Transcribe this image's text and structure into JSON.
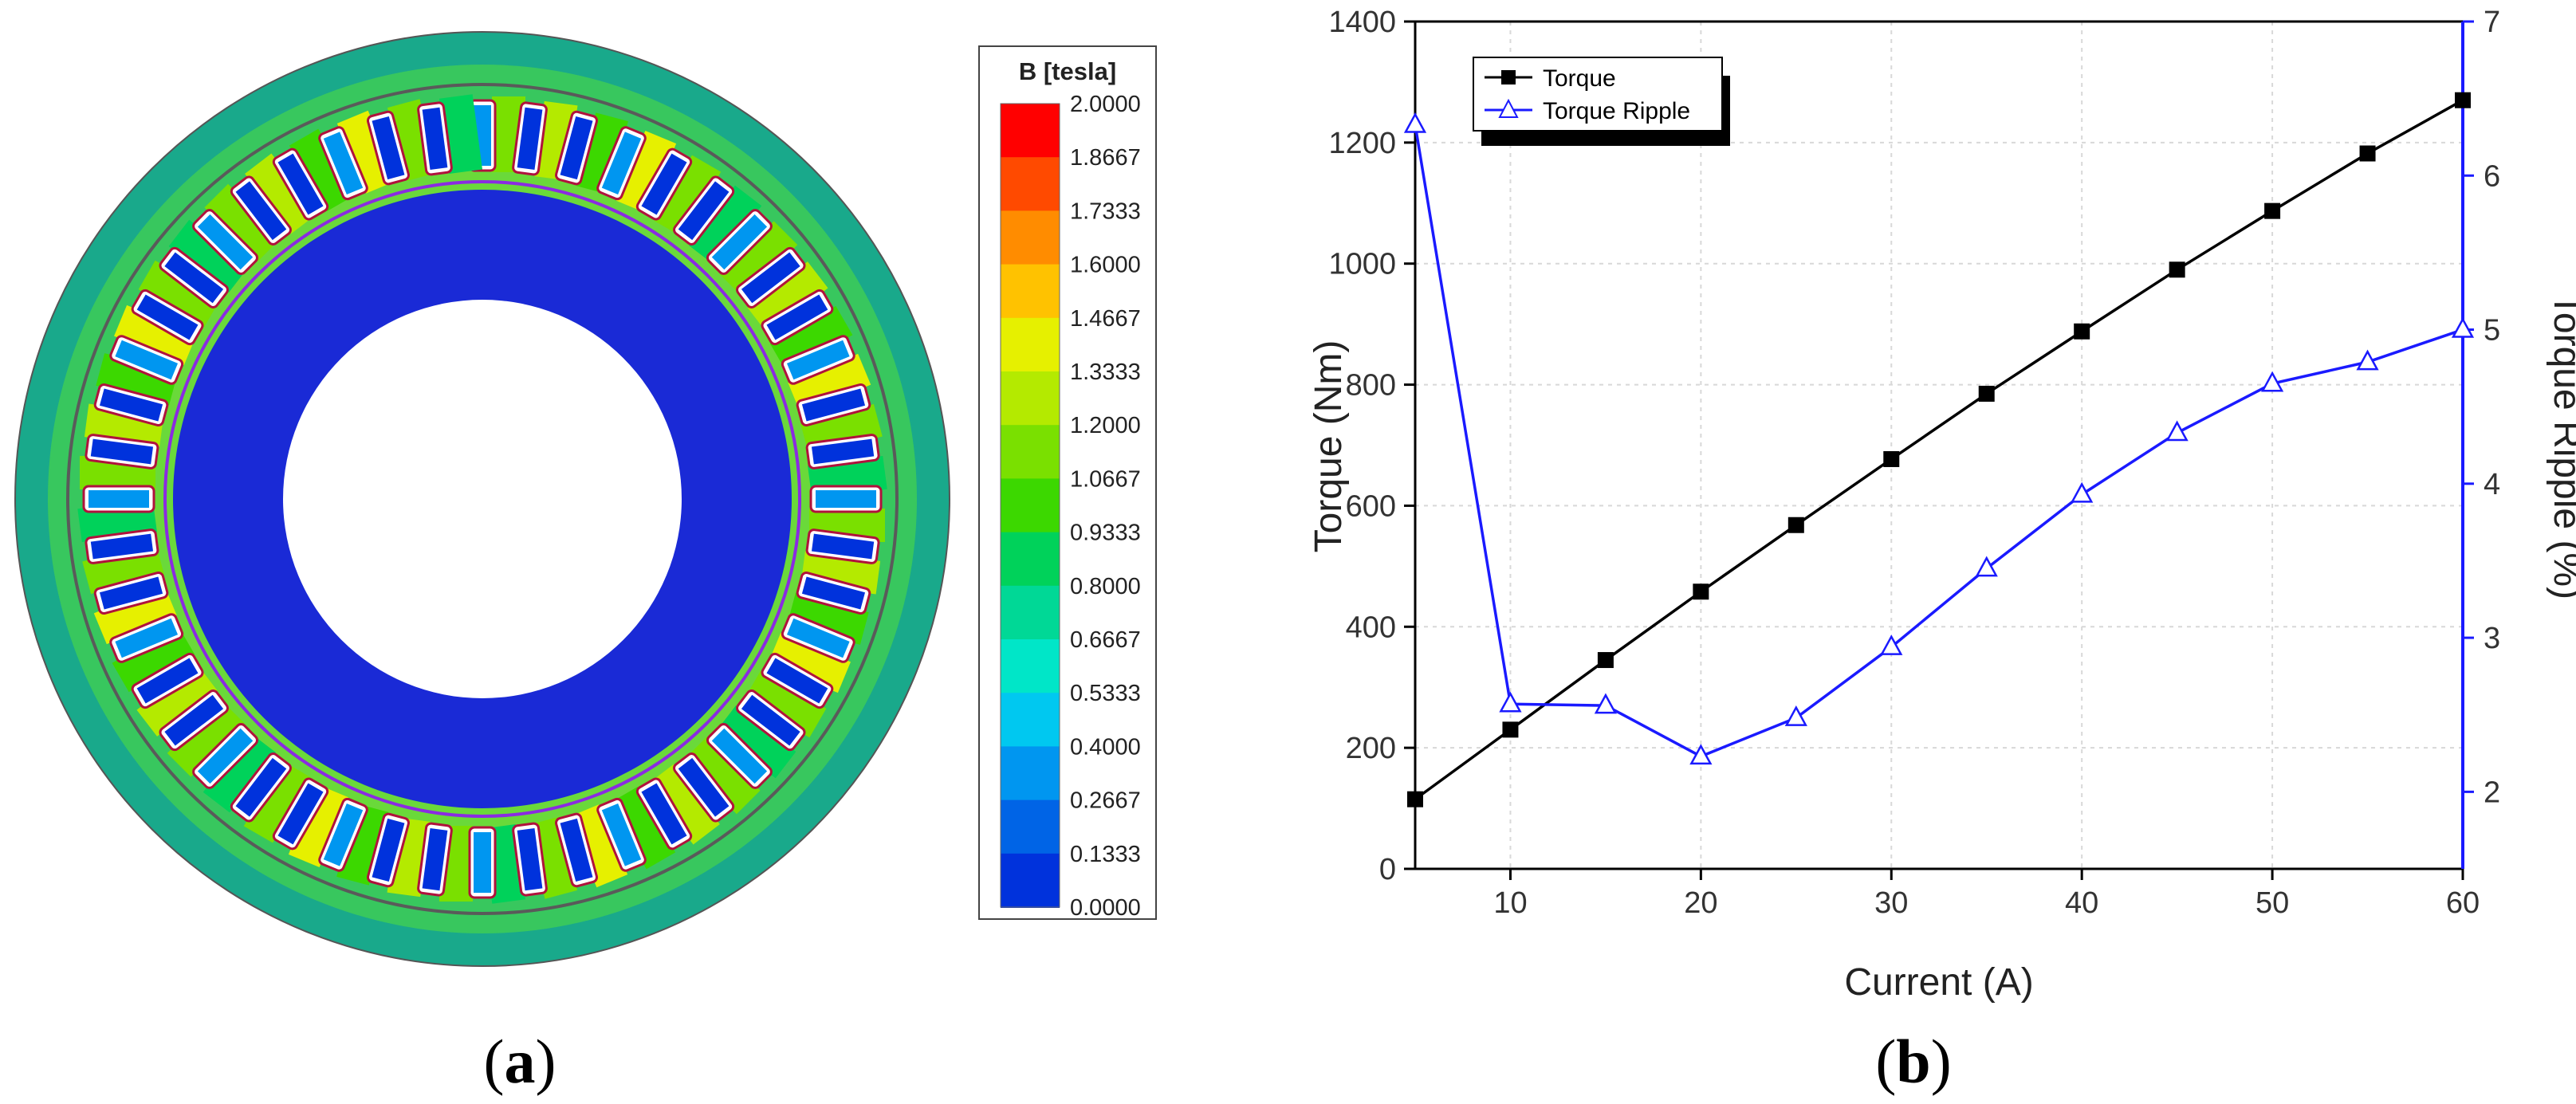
{
  "panels": {
    "a": {
      "letter": "a"
    },
    "b": {
      "letter": "b"
    }
  },
  "colorbar": {
    "title": "B [tesla]",
    "levels": [
      "2.0000",
      "1.8667",
      "1.7333",
      "1.6000",
      "1.4667",
      "1.3333",
      "1.2000",
      "1.0667",
      "0.9333",
      "0.8000",
      "0.6667",
      "0.5333",
      "0.4000",
      "0.2667",
      "0.1333",
      "0.0000"
    ],
    "colors": [
      "#ff0000",
      "#ff4a00",
      "#ff8c00",
      "#ffc200",
      "#e6f000",
      "#b4ea00",
      "#7ae000",
      "#3cd800",
      "#00d25a",
      "#00d896",
      "#00e6c8",
      "#00c8f0",
      "#0096f0",
      "#0064e6",
      "#0032dc",
      "#0000e6"
    ]
  },
  "chart_data": {
    "type": "line",
    "xlabel": "Current (A)",
    "ylabel": "Torque (Nm)",
    "y2label": "Torque Ripple (%)",
    "xlim": [
      5,
      60
    ],
    "ylim": [
      0,
      1400
    ],
    "y2lim": [
      1.5,
      7
    ],
    "x_ticks": [
      10,
      20,
      30,
      40,
      50,
      60
    ],
    "y_ticks": [
      0,
      200,
      400,
      600,
      800,
      1000,
      1200,
      1400
    ],
    "y2_ticks": [
      2,
      3,
      4,
      5,
      6,
      7
    ],
    "legend_position": "top-left",
    "grid": true,
    "x": [
      5,
      10,
      15,
      20,
      25,
      30,
      35,
      40,
      45,
      50,
      55,
      60
    ],
    "series": [
      {
        "name": "Torque",
        "axis": "left",
        "color": "#000000",
        "marker": "square",
        "values": [
          115,
          230,
          345,
          458,
          568,
          677,
          785,
          888,
          990,
          1087,
          1182,
          1270
        ]
      },
      {
        "name": "Torque Ripple",
        "axis": "right",
        "color": "#1a1aff",
        "marker": "triangle",
        "values": [
          6.33,
          2.57,
          2.56,
          2.23,
          2.48,
          2.94,
          3.45,
          3.93,
          4.33,
          4.65,
          4.79,
          5.0
        ]
      }
    ]
  }
}
